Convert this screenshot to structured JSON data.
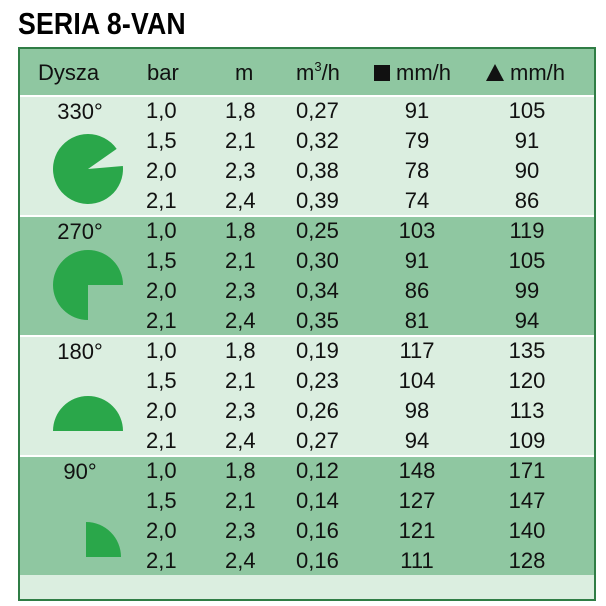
{
  "title": "SERIA 8-VAN",
  "colors": {
    "header": "#8fc7a1",
    "light": "#dbeee0",
    "dark": "#8fc7a1",
    "border": "#2f7d45",
    "icon": "#2aa74a"
  },
  "header": {
    "nozzle": "Dysza",
    "bar": "bar",
    "m": "m",
    "flow_base": "m",
    "flow_sup": "3",
    "flow_rest": "/h",
    "square_precip": "mm/h",
    "triangle_precip": "mm/h"
  },
  "groups": [
    {
      "angle": "330°",
      "icon": "pie-330-icon",
      "rows": [
        {
          "bar": "1,0",
          "m": "1,8",
          "q": "0,27",
          "sq": "91",
          "tr": "105"
        },
        {
          "bar": "1,5",
          "m": "2,1",
          "q": "0,32",
          "sq": "79",
          "tr": "91"
        },
        {
          "bar": "2,0",
          "m": "2,3",
          "q": "0,38",
          "sq": "78",
          "tr": "90"
        },
        {
          "bar": "2,1",
          "m": "2,4",
          "q": "0,39",
          "sq": "74",
          "tr": "86"
        }
      ]
    },
    {
      "angle": "270°",
      "icon": "pie-270-icon",
      "rows": [
        {
          "bar": "1,0",
          "m": "1,8",
          "q": "0,25",
          "sq": "103",
          "tr": "119"
        },
        {
          "bar": "1,5",
          "m": "2,1",
          "q": "0,30",
          "sq": "91",
          "tr": "105"
        },
        {
          "bar": "2,0",
          "m": "2,3",
          "q": "0,34",
          "sq": "86",
          "tr": "99"
        },
        {
          "bar": "2,1",
          "m": "2,4",
          "q": "0,35",
          "sq": "81",
          "tr": "94"
        }
      ]
    },
    {
      "angle": "180°",
      "icon": "pie-180-icon",
      "rows": [
        {
          "bar": "1,0",
          "m": "1,8",
          "q": "0,19",
          "sq": "117",
          "tr": "135"
        },
        {
          "bar": "1,5",
          "m": "2,1",
          "q": "0,23",
          "sq": "104",
          "tr": "120"
        },
        {
          "bar": "2,0",
          "m": "2,3",
          "q": "0,26",
          "sq": "98",
          "tr": "113"
        },
        {
          "bar": "2,1",
          "m": "2,4",
          "q": "0,27",
          "sq": "94",
          "tr": "109"
        }
      ]
    },
    {
      "angle": "90°",
      "icon": "pie-90-icon",
      "rows": [
        {
          "bar": "1,0",
          "m": "1,8",
          "q": "0,12",
          "sq": "148",
          "tr": "171"
        },
        {
          "bar": "1,5",
          "m": "2,1",
          "q": "0,14",
          "sq": "127",
          "tr": "147"
        },
        {
          "bar": "2,0",
          "m": "2,3",
          "q": "0,16",
          "sq": "121",
          "tr": "140"
        },
        {
          "bar": "2,1",
          "m": "2,4",
          "q": "0,16",
          "sq": "111",
          "tr": "128"
        }
      ]
    }
  ]
}
